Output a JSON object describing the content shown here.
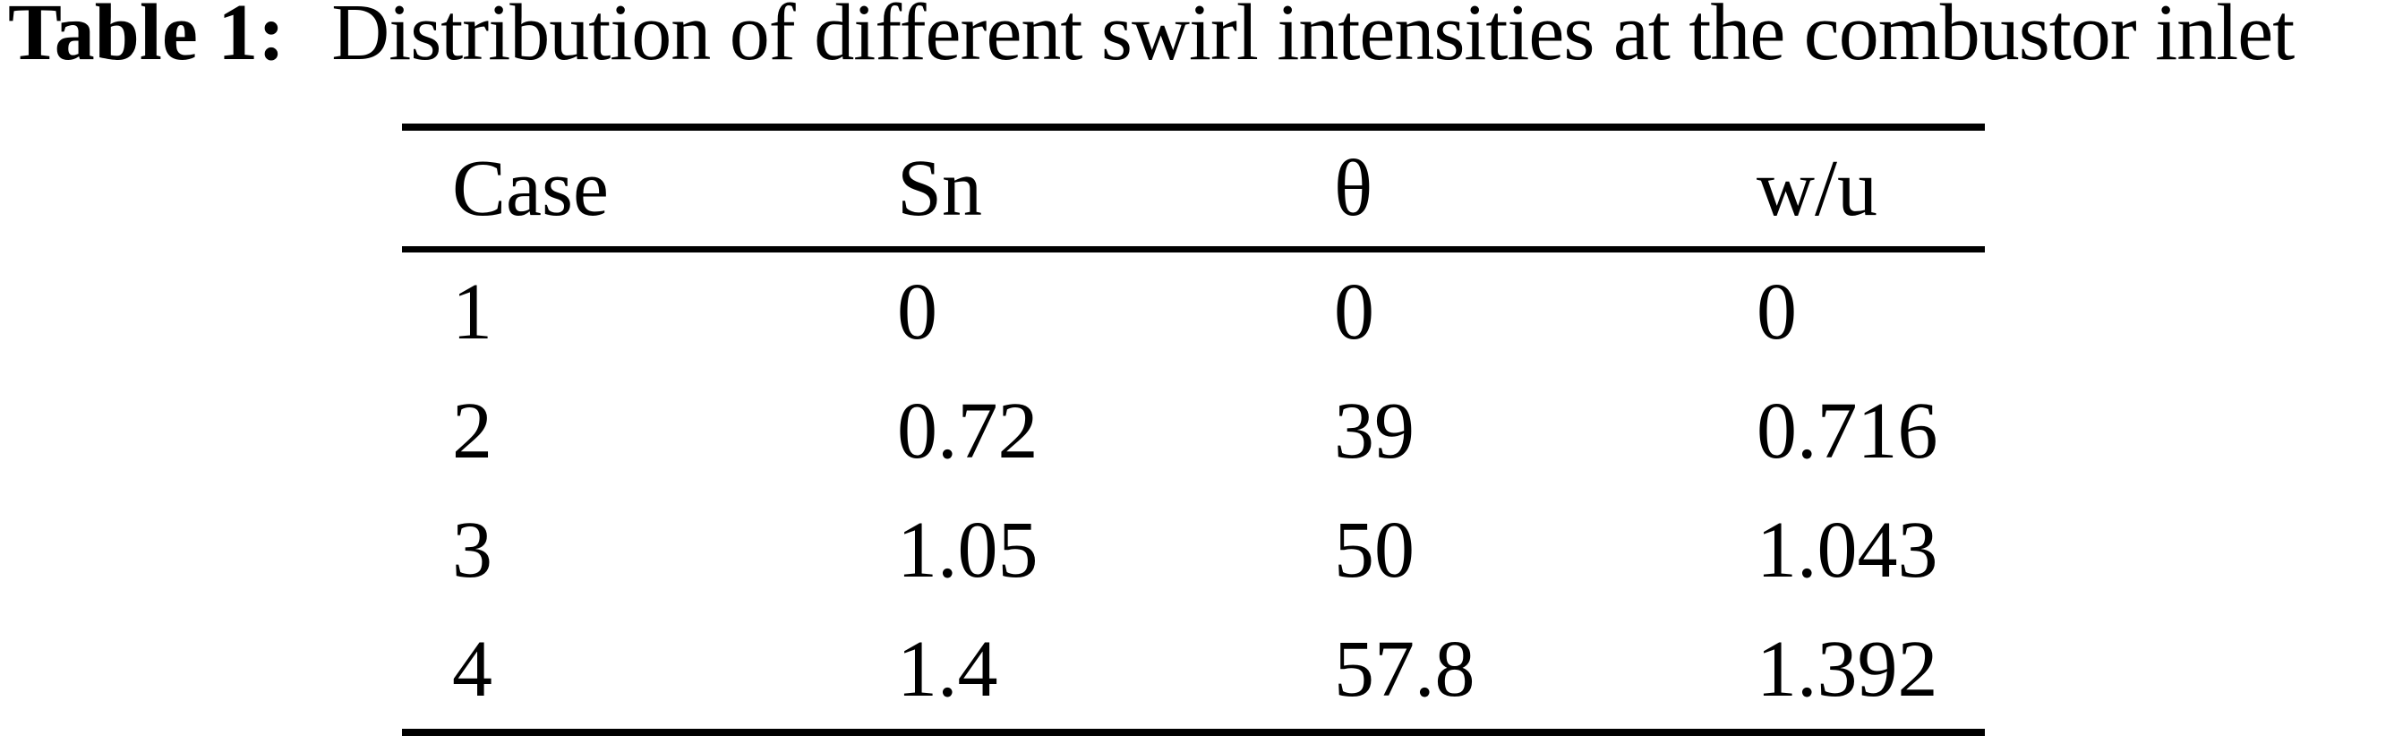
{
  "caption": {
    "label": "Table 1:",
    "text": "Distribution of different swirl intensities at the combustor inlet"
  },
  "table": {
    "headers": [
      "Case",
      "Sn",
      "θ",
      "w/u"
    ],
    "rows": [
      [
        "1",
        "0",
        "0",
        "0"
      ],
      [
        "2",
        "0.72",
        "39",
        "0.716"
      ],
      [
        "3",
        "1.05",
        "50",
        "1.043"
      ],
      [
        "4",
        "1.4",
        "57.8",
        "1.392"
      ]
    ]
  },
  "colors": {
    "text": "#000000",
    "background": "#ffffff",
    "rule": "#000000"
  }
}
